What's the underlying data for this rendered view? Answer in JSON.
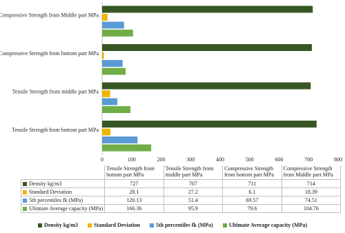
{
  "chart_data": {
    "type": "bar",
    "orientation": "horizontal",
    "categories": [
      "Tensile Strength from bottom part MPa",
      "Tensile Strength from middle part MPa",
      "Compressive Strength from bottom part MPa",
      "Compressive Strength from Middle part MPa"
    ],
    "series": [
      {
        "name": "Density kg/m3",
        "color": "#375623",
        "values": [
          727,
          707,
          711,
          714
        ]
      },
      {
        "name": "Standard Deviation",
        "color": "#f0b400",
        "values": [
          28.1,
          27.2,
          6.1,
          18.39
        ]
      },
      {
        "name": "5th percentiles fk (MPa)",
        "color": "#5b9bd5",
        "values": [
          120.13,
          51.4,
          69.57,
          74.51
        ]
      },
      {
        "name": "Ultimate Average capacity (MPa)",
        "color": "#70ad47",
        "values": [
          166.36,
          95.9,
          79.6,
          104.76
        ]
      }
    ],
    "xlim": [
      0,
      800
    ],
    "xticks": [
      0,
      100,
      200,
      300,
      400,
      500,
      600,
      700,
      800
    ],
    "grid": false,
    "legend": "bottom",
    "data_table": true
  }
}
